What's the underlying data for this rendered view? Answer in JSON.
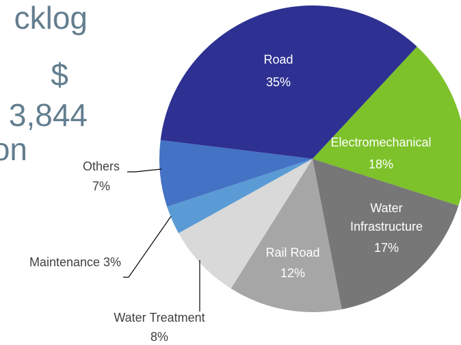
{
  "slide_text": [
    "cklog",
    "$",
    "3,844",
    "on"
  ],
  "chart_data": {
    "type": "pie",
    "categories": [
      "Road",
      "Electromechanical",
      "Water Infrastructure",
      "Rail Road",
      "Water Treatment",
      "Maintenance",
      "Others"
    ],
    "values": [
      35,
      18,
      17,
      12,
      8,
      3,
      7
    ],
    "value_labels": [
      "35%",
      "18%",
      "17%",
      "12%",
      "8%",
      "3%",
      "7%"
    ],
    "colors": [
      "#2e3192",
      "#7dc22a",
      "#777777",
      "#a6a6a6",
      "#d9d9d9",
      "#5b9bd5",
      "#4472c4"
    ]
  }
}
